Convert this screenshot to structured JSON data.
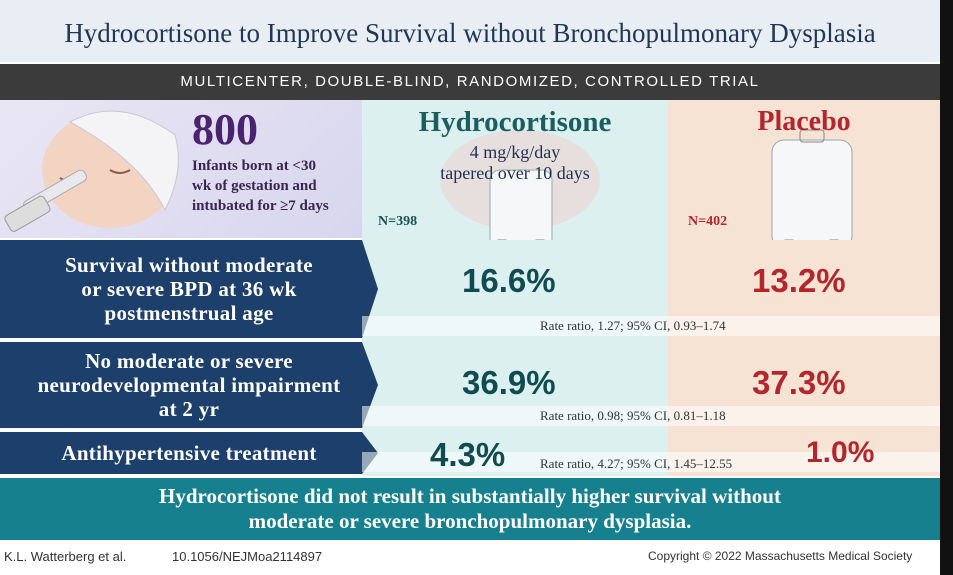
{
  "title": "Hydrocortisone to Improve Survival without Bronchopulmonary Dysplasia",
  "banner": "MULTICENTER, DOUBLE-BLIND, RANDOMIZED, CONTROLLED TRIAL",
  "population": {
    "count": "800",
    "description_lines": [
      "Infants born at <30",
      "wk of gestation and",
      "intubated for ≥7 days"
    ]
  },
  "arms": [
    {
      "name": "Hydrocortisone",
      "dose_lines": [
        "4 mg/kg/day",
        "tapered over 10 days"
      ],
      "n": "N=398"
    },
    {
      "name": "Placebo",
      "n": "N=402"
    }
  ],
  "outcomes": [
    {
      "label_lines": [
        "Survival without moderate",
        "or severe BPD at 36 wk",
        "postmenstrual age"
      ],
      "hydrocortisone": "16.6%",
      "placebo": "13.2%",
      "ratio": "Rate ratio, 1.27; 95% CI, 0.93–1.74"
    },
    {
      "label_lines": [
        "No moderate or severe",
        "neurodevelopmental impairment",
        "at 2 yr"
      ],
      "hydrocortisone": "36.9%",
      "placebo": "37.3%",
      "ratio": "Rate ratio, 0.98; 95% CI, 0.81–1.18"
    },
    {
      "label_lines": [
        "Antihypertensive treatment"
      ],
      "hydrocortisone": "4.3%",
      "placebo": "1.0%",
      "ratio": "Rate ratio, 4.27; 95% CI, 1.45–12.55"
    }
  ],
  "conclusion_lines": [
    "Hydrocortisone did not result in substantially higher survival without",
    "moderate or severe bronchopulmonary dysplasia."
  ],
  "footer": {
    "authors": "K.L. Watterberg et al.",
    "doi": "10.1056/NEJMoa2114897",
    "copyright": "Copyright © 2022 Massachusetts Medical Society"
  }
}
